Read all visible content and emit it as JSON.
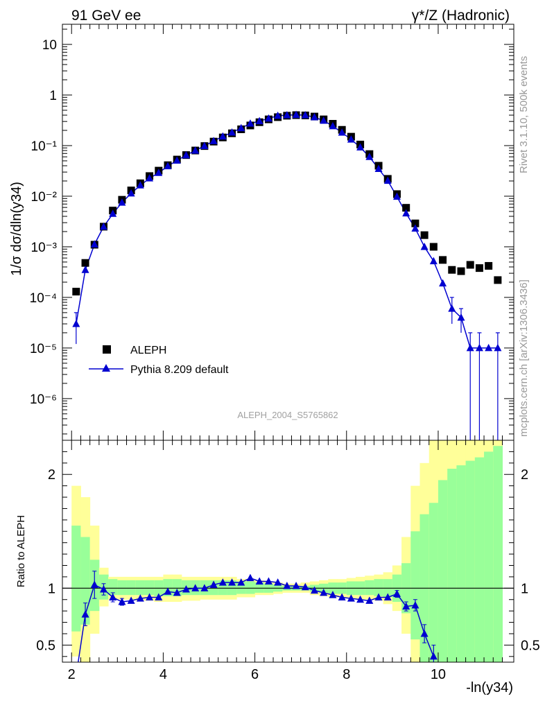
{
  "header": {
    "left": "91 GeV ee",
    "right": "γ*/Z (Hadronic)"
  },
  "side_labels": {
    "rivet": "Rivet 3.1.10,  500k events",
    "mcplots": "mcplots.cern.ch [arXiv:1306.3436]"
  },
  "analysis_id": "ALEPH_2004_S5765862",
  "colors": {
    "data": "#000000",
    "mc": "#0000d0",
    "band_inner": "#99ff99",
    "band_outer": "#ffff99"
  },
  "chart_data": [
    {
      "type": "scatter",
      "panel": "main",
      "ylabel": "1/σ  dσ/dln(y34)",
      "yscale": "log",
      "ylim": [
        1.5e-07,
        25
      ],
      "xlim": [
        1.8,
        11.65
      ],
      "y_ticks": [
        "10",
        "1",
        "10⁻¹",
        "10⁻²",
        "10⁻³",
        "10⁻⁴",
        "10⁻⁵",
        "10⁻⁶"
      ],
      "legend_position": "bottom-left",
      "series": [
        {
          "name": "ALEPH",
          "marker": "square",
          "x": [
            2.1,
            2.3,
            2.5,
            2.7,
            2.9,
            3.1,
            3.3,
            3.5,
            3.7,
            3.9,
            4.1,
            4.3,
            4.5,
            4.7,
            4.9,
            5.1,
            5.3,
            5.5,
            5.7,
            5.9,
            6.1,
            6.3,
            6.5,
            6.7,
            6.9,
            7.1,
            7.3,
            7.5,
            7.7,
            7.9,
            8.1,
            8.3,
            8.5,
            8.7,
            8.9,
            9.1,
            9.3,
            9.5,
            9.7,
            9.9,
            10.1,
            10.3,
            10.5,
            10.7,
            10.9,
            11.1,
            11.3
          ],
          "y": [
            0.00013,
            0.00048,
            0.0011,
            0.0025,
            0.0052,
            0.0085,
            0.013,
            0.018,
            0.025,
            0.032,
            0.041,
            0.053,
            0.065,
            0.08,
            0.098,
            0.12,
            0.145,
            0.175,
            0.21,
            0.25,
            0.29,
            0.33,
            0.365,
            0.39,
            0.4,
            0.395,
            0.375,
            0.33,
            0.27,
            0.205,
            0.15,
            0.105,
            0.068,
            0.04,
            0.022,
            0.011,
            0.0059,
            0.0029,
            0.0017,
            0.001,
            0.00055,
            0.00035,
            0.00033,
            0.00044,
            0.00038,
            0.00042,
            0.00022
          ]
        },
        {
          "name": "Pythia 8.209 default",
          "marker": "triangle",
          "x": [
            2.1,
            2.3,
            2.5,
            2.7,
            2.9,
            3.1,
            3.3,
            3.5,
            3.7,
            3.9,
            4.1,
            4.3,
            4.5,
            4.7,
            4.9,
            5.1,
            5.3,
            5.5,
            5.7,
            5.9,
            6.1,
            6.3,
            6.5,
            6.7,
            6.9,
            7.1,
            7.3,
            7.5,
            7.7,
            7.9,
            8.1,
            8.3,
            8.5,
            8.7,
            8.9,
            9.1,
            9.3,
            9.5,
            9.7,
            9.9,
            10.1,
            10.3,
            10.5,
            10.7,
            10.9,
            11.1,
            11.3
          ],
          "y": [
            3e-05,
            0.00035,
            0.00112,
            0.0025,
            0.0045,
            0.0075,
            0.0114,
            0.0164,
            0.0226,
            0.029,
            0.0393,
            0.0507,
            0.0645,
            0.0799,
            0.0985,
            0.1232,
            0.1517,
            0.1823,
            0.2218,
            0.2736,
            0.3052,
            0.3442,
            0.3895,
            0.3994,
            0.4049,
            0.3991,
            0.3645,
            0.3112,
            0.2428,
            0.1811,
            0.1325,
            0.0925,
            0.0598,
            0.0347,
            0.0202,
            0.0098,
            0.0046,
            0.0023,
            0.001,
            0.00052,
            0.00019,
            6e-05,
            4e-05,
            1e-05,
            1e-05,
            1e-05,
            1e-05
          ]
        }
      ]
    },
    {
      "type": "line",
      "panel": "ratio",
      "xlabel": "-ln(y34)",
      "ylabel": "Ratio to ALEPH",
      "ylim": [
        0.35,
        2.3
      ],
      "x_ticks": [
        2,
        4,
        6,
        8,
        10
      ],
      "y_ticks": [
        0.5,
        1,
        2
      ],
      "edges": [
        2.0,
        2.2,
        2.4,
        2.6,
        2.8,
        3.0,
        3.2,
        3.4,
        3.6,
        3.8,
        4.0,
        4.2,
        4.4,
        4.6,
        4.8,
        5.0,
        5.2,
        5.4,
        5.6,
        5.8,
        6.0,
        6.2,
        6.4,
        6.6,
        6.8,
        7.0,
        7.2,
        7.4,
        7.6,
        7.8,
        8.0,
        8.2,
        8.4,
        8.6,
        8.8,
        9.0,
        9.2,
        9.4,
        9.6,
        9.8,
        10.0,
        10.2,
        10.4,
        10.6,
        10.8,
        11.0,
        11.2,
        11.4
      ],
      "band_inner_hi": [
        1.55,
        1.45,
        1.25,
        1.12,
        1.08,
        1.07,
        1.07,
        1.07,
        1.07,
        1.07,
        1.08,
        1.08,
        1.07,
        1.07,
        1.07,
        1.07,
        1.07,
        1.07,
        1.06,
        1.06,
        1.05,
        1.04,
        1.03,
        1.02,
        1.02,
        1.02,
        1.03,
        1.04,
        1.05,
        1.05,
        1.06,
        1.06,
        1.07,
        1.08,
        1.08,
        1.12,
        1.22,
        1.5,
        1.65,
        1.75,
        1.95,
        2.05,
        2.08,
        2.12,
        2.15,
        2.2,
        2.25
      ],
      "band_inner_lo": [
        0.62,
        0.68,
        0.8,
        0.9,
        0.94,
        0.94,
        0.94,
        0.94,
        0.94,
        0.93,
        0.93,
        0.93,
        0.94,
        0.94,
        0.94,
        0.94,
        0.94,
        0.94,
        0.95,
        0.95,
        0.96,
        0.96,
        0.97,
        0.98,
        0.98,
        0.98,
        0.97,
        0.96,
        0.95,
        0.95,
        0.94,
        0.94,
        0.94,
        0.93,
        0.92,
        0.88,
        0.78,
        0.55,
        0.35,
        0.35,
        0.35,
        0.35,
        0.35,
        0.35,
        0.35,
        0.35,
        0.35
      ],
      "band_outer_hi": [
        1.9,
        1.8,
        1.55,
        1.18,
        1.1,
        1.1,
        1.1,
        1.1,
        1.1,
        1.1,
        1.12,
        1.12,
        1.1,
        1.1,
        1.1,
        1.1,
        1.1,
        1.1,
        1.08,
        1.08,
        1.07,
        1.06,
        1.05,
        1.04,
        1.04,
        1.05,
        1.06,
        1.07,
        1.08,
        1.08,
        1.09,
        1.1,
        1.11,
        1.12,
        1.14,
        1.2,
        1.45,
        1.9,
        2.1,
        2.3,
        2.3,
        2.3,
        2.3,
        2.3,
        2.3,
        2.3,
        2.3
      ],
      "band_outer_lo": [
        0.4,
        0.35,
        0.6,
        0.84,
        0.9,
        0.9,
        0.9,
        0.89,
        0.89,
        0.88,
        0.88,
        0.88,
        0.89,
        0.89,
        0.9,
        0.9,
        0.9,
        0.9,
        0.92,
        0.92,
        0.94,
        0.94,
        0.95,
        0.96,
        0.96,
        0.96,
        0.94,
        0.93,
        0.92,
        0.92,
        0.91,
        0.9,
        0.9,
        0.89,
        0.86,
        0.8,
        0.6,
        0.35,
        0.35,
        0.35,
        0.35,
        0.35,
        0.35,
        0.35,
        0.35,
        0.35,
        0.35
      ],
      "ratio": {
        "x": [
          2.1,
          2.3,
          2.5,
          2.7,
          2.9,
          3.1,
          3.3,
          3.5,
          3.7,
          3.9,
          4.1,
          4.3,
          4.5,
          4.7,
          4.9,
          5.1,
          5.3,
          5.5,
          5.7,
          5.9,
          6.1,
          6.3,
          6.5,
          6.7,
          6.9,
          7.1,
          7.3,
          7.5,
          7.7,
          7.9,
          8.1,
          8.3,
          8.5,
          8.7,
          8.9,
          9.1,
          9.3,
          9.5,
          9.7,
          9.9
        ],
        "y": [
          0.23,
          0.77,
          1.03,
          0.99,
          0.92,
          0.88,
          0.89,
          0.91,
          0.92,
          0.92,
          0.97,
          0.96,
          0.99,
          1.0,
          1.0,
          1.03,
          1.05,
          1.05,
          1.05,
          1.09,
          1.06,
          1.06,
          1.05,
          1.02,
          1.02,
          1.01,
          0.98,
          0.96,
          0.94,
          0.92,
          0.91,
          0.9,
          0.89,
          0.92,
          0.92,
          0.95,
          0.84,
          0.85,
          0.6,
          0.4
        ],
        "err": [
          0.1,
          0.1,
          0.12,
          0.05,
          0.04,
          0.03,
          0.02,
          0.02,
          0.02,
          0.02,
          0.02,
          0.02,
          0.02,
          0.02,
          0.02,
          0.02,
          0.02,
          0.02,
          0.02,
          0.02,
          0.02,
          0.02,
          0.02,
          0.02,
          0.02,
          0.02,
          0.02,
          0.02,
          0.02,
          0.02,
          0.02,
          0.02,
          0.02,
          0.02,
          0.02,
          0.03,
          0.04,
          0.05,
          0.08,
          0.1
        ]
      }
    }
  ]
}
